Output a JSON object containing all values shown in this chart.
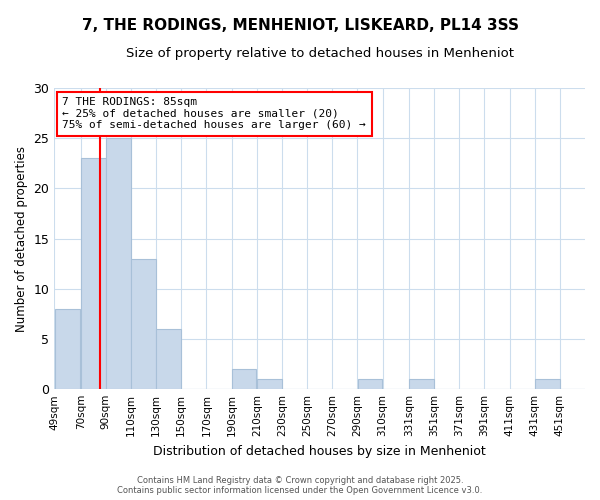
{
  "title1": "7, THE RODINGS, MENHENIOT, LISKEARD, PL14 3SS",
  "title2": "Size of property relative to detached houses in Menheniot",
  "xlabel": "Distribution of detached houses by size in Menheniot",
  "ylabel": "Number of detached properties",
  "bins": [
    49,
    70,
    90,
    110,
    130,
    150,
    170,
    190,
    210,
    230,
    250,
    270,
    290,
    310,
    331,
    351,
    371,
    391,
    411,
    431,
    451
  ],
  "values": [
    8,
    23,
    25,
    13,
    6,
    0,
    0,
    2,
    1,
    0,
    0,
    0,
    1,
    0,
    1,
    0,
    0,
    0,
    0,
    1,
    0
  ],
  "bar_color": "#c8d8ea",
  "bar_edge_color": "#a8c0d8",
  "red_line_x": 85,
  "ylim": [
    0,
    30
  ],
  "yticks": [
    0,
    5,
    10,
    15,
    20,
    25,
    30
  ],
  "ann_line1": "7 THE RODINGS: 85sqm",
  "ann_line2": "← 25% of detached houses are smaller (20)",
  "ann_line3": "75% of semi-detached houses are larger (60) →",
  "footer_text": "Contains HM Land Registry data © Crown copyright and database right 2025.\nContains public sector information licensed under the Open Government Licence v3.0.",
  "bg_color": "#ffffff",
  "plot_bg_color": "#ffffff",
  "grid_color": "#ccdded",
  "title_fontsize": 11,
  "subtitle_fontsize": 9.5
}
